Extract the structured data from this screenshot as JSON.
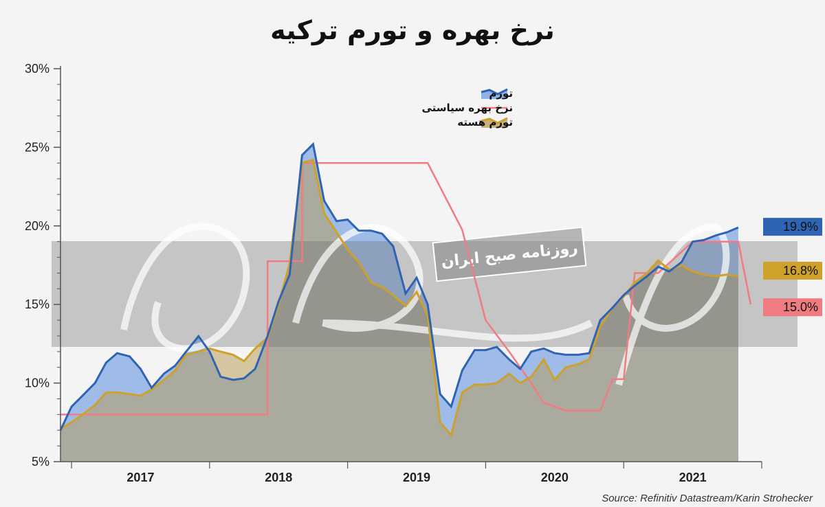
{
  "title": "نرخ بهره و تورم ترکیه",
  "source": "Source: Refinitiv Datastream/Karin Strohecker",
  "watermark": {
    "stamp_text": "روزنامه صبح ایران"
  },
  "colors": {
    "inflation": "#2f64b4",
    "inflation_fill": "#8fb1e6",
    "policy_rate": "#f07c82",
    "core_inflation": "#cda12a",
    "core_fill": "#c9b27a",
    "gray_fill": "#a9a9a0"
  },
  "chart_data": {
    "type": "area",
    "title": "نرخ بهره و تورم ترکیه",
    "ylim": [
      5,
      30
    ],
    "y_ticks": [
      "5%",
      "10%",
      "15%",
      "20%",
      "25%",
      "30%"
    ],
    "y_tick_values": [
      5,
      10,
      15,
      20,
      25,
      30
    ],
    "x_range": [
      2016.5,
      2021.5
    ],
    "x_ticks": [
      "2017",
      "2018",
      "2019",
      "2020",
      "2021"
    ],
    "x_tick_values": [
      2017,
      2018,
      2019,
      2020,
      2021
    ],
    "legend_position": "top-right",
    "series": [
      {
        "name": "تورم",
        "key": "inflation",
        "x": [
          2016.42,
          2016.5,
          2016.58,
          2016.67,
          2016.75,
          2016.83,
          2016.92,
          2017.0,
          2017.08,
          2017.17,
          2017.25,
          2017.33,
          2017.42,
          2017.5,
          2017.58,
          2017.67,
          2017.75,
          2017.83,
          2017.92,
          2018.0,
          2018.08,
          2018.17,
          2018.25,
          2018.33,
          2018.42,
          2018.5,
          2018.58,
          2018.67,
          2018.75,
          2018.83,
          2018.92,
          2019.0,
          2019.08,
          2019.17,
          2019.25,
          2019.33,
          2019.42,
          2019.5,
          2019.58,
          2019.67,
          2019.75,
          2019.83,
          2019.92,
          2020.0,
          2020.08,
          2020.17,
          2020.25,
          2020.33,
          2020.42,
          2020.5,
          2020.58,
          2020.67,
          2020.75,
          2020.83,
          2020.92,
          2021.0,
          2021.08,
          2021.17,
          2021.25,
          2021.33
        ],
        "values": [
          7.0,
          8.5,
          9.2,
          10.0,
          11.3,
          11.9,
          11.7,
          10.9,
          9.7,
          10.6,
          11.1,
          12.0,
          12.98,
          12.0,
          10.4,
          10.2,
          10.3,
          10.9,
          13.0,
          15.2,
          16.9,
          24.5,
          25.2,
          21.6,
          20.3,
          20.4,
          19.7,
          19.7,
          19.5,
          18.7,
          15.7,
          16.7,
          15.0,
          9.3,
          8.5,
          10.8,
          12.1,
          12.1,
          12.3,
          11.5,
          10.9,
          12.0,
          12.2,
          11.9,
          11.8,
          11.8,
          11.9,
          14.0,
          14.8,
          15.6,
          16.2,
          16.8,
          17.4,
          17.1,
          17.7,
          19.0,
          19.1,
          19.4,
          19.6,
          19.9
        ]
      },
      {
        "name": "نرخ بهره سیاستی",
        "key": "policy_rate",
        "x": [
          2016.42,
          2017.92,
          2017.92,
          2018.08,
          2018.08,
          2018.17,
          2018.17,
          2018.25,
          2018.25,
          2018.5,
          2018.5,
          2018.83,
          2018.83,
          2019.0,
          2019.0,
          2019.08,
          2019.08,
          2019.33,
          2019.33,
          2019.5,
          2019.5,
          2019.67,
          2019.67,
          2019.83,
          2019.83,
          2019.92,
          2019.92,
          2020.08,
          2020.08,
          2020.17,
          2020.17,
          2020.33,
          2020.33,
          2020.42,
          2020.42,
          2020.5,
          2020.5,
          2020.58,
          2020.58,
          2020.75,
          2020.75,
          2021.0,
          2021.0,
          2021.33,
          2021.33,
          2021.42
        ],
        "values": [
          8.0,
          8.0,
          17.75,
          17.75,
          17.75,
          17.75,
          24.0,
          24.0,
          24.0,
          24.0,
          24.0,
          24.0,
          24.0,
          24.0,
          24.0,
          24.0,
          24.0,
          19.75,
          19.75,
          14.0,
          14.0,
          12.0,
          12.0,
          10.0,
          10.0,
          8.75,
          8.75,
          8.25,
          8.25,
          8.25,
          8.25,
          8.25,
          8.25,
          10.25,
          10.25,
          10.25,
          10.25,
          17.0,
          17.0,
          17.0,
          17.0,
          19.0,
          19.0,
          19.0,
          19.0,
          15.0
        ]
      },
      {
        "name": "تورم هسته",
        "key": "core_inflation",
        "x": [
          2016.42,
          2016.5,
          2016.58,
          2016.67,
          2016.75,
          2016.83,
          2016.92,
          2017.0,
          2017.08,
          2017.17,
          2017.25,
          2017.33,
          2017.42,
          2017.5,
          2017.58,
          2017.67,
          2017.75,
          2017.83,
          2017.92,
          2018.0,
          2018.08,
          2018.17,
          2018.25,
          2018.33,
          2018.42,
          2018.5,
          2018.58,
          2018.67,
          2018.75,
          2018.83,
          2018.92,
          2019.0,
          2019.08,
          2019.17,
          2019.25,
          2019.33,
          2019.42,
          2019.5,
          2019.58,
          2019.67,
          2019.75,
          2019.83,
          2019.92,
          2020.0,
          2020.08,
          2020.17,
          2020.25,
          2020.33,
          2020.42,
          2020.5,
          2020.58,
          2020.67,
          2020.75,
          2020.83,
          2020.92,
          2021.0,
          2021.08,
          2021.17,
          2021.25,
          2021.33
        ],
        "values": [
          7.1,
          7.5,
          8.0,
          8.6,
          9.4,
          9.4,
          9.3,
          9.2,
          9.6,
          10.2,
          10.8,
          11.8,
          12.0,
          12.2,
          12.0,
          11.8,
          11.4,
          12.2,
          12.9,
          15.0,
          17.6,
          24.0,
          24.2,
          20.8,
          19.6,
          18.5,
          17.7,
          16.4,
          16.1,
          15.6,
          14.9,
          15.8,
          14.3,
          7.5,
          6.7,
          9.4,
          9.9,
          9.9,
          10.0,
          10.6,
          10.0,
          10.4,
          11.5,
          10.2,
          11.0,
          11.2,
          11.5,
          13.6,
          14.8,
          15.5,
          16.4,
          17.0,
          17.8,
          17.2,
          17.5,
          17.1,
          16.9,
          16.8,
          16.9,
          16.8
        ]
      }
    ],
    "end_labels": [
      {
        "key": "inflation",
        "text": "19.9%",
        "value": 19.9
      },
      {
        "key": "core_inflation",
        "text": "16.8%",
        "value": 16.8
      },
      {
        "key": "policy_rate",
        "text": "15.0%",
        "value": 15.0
      }
    ]
  }
}
